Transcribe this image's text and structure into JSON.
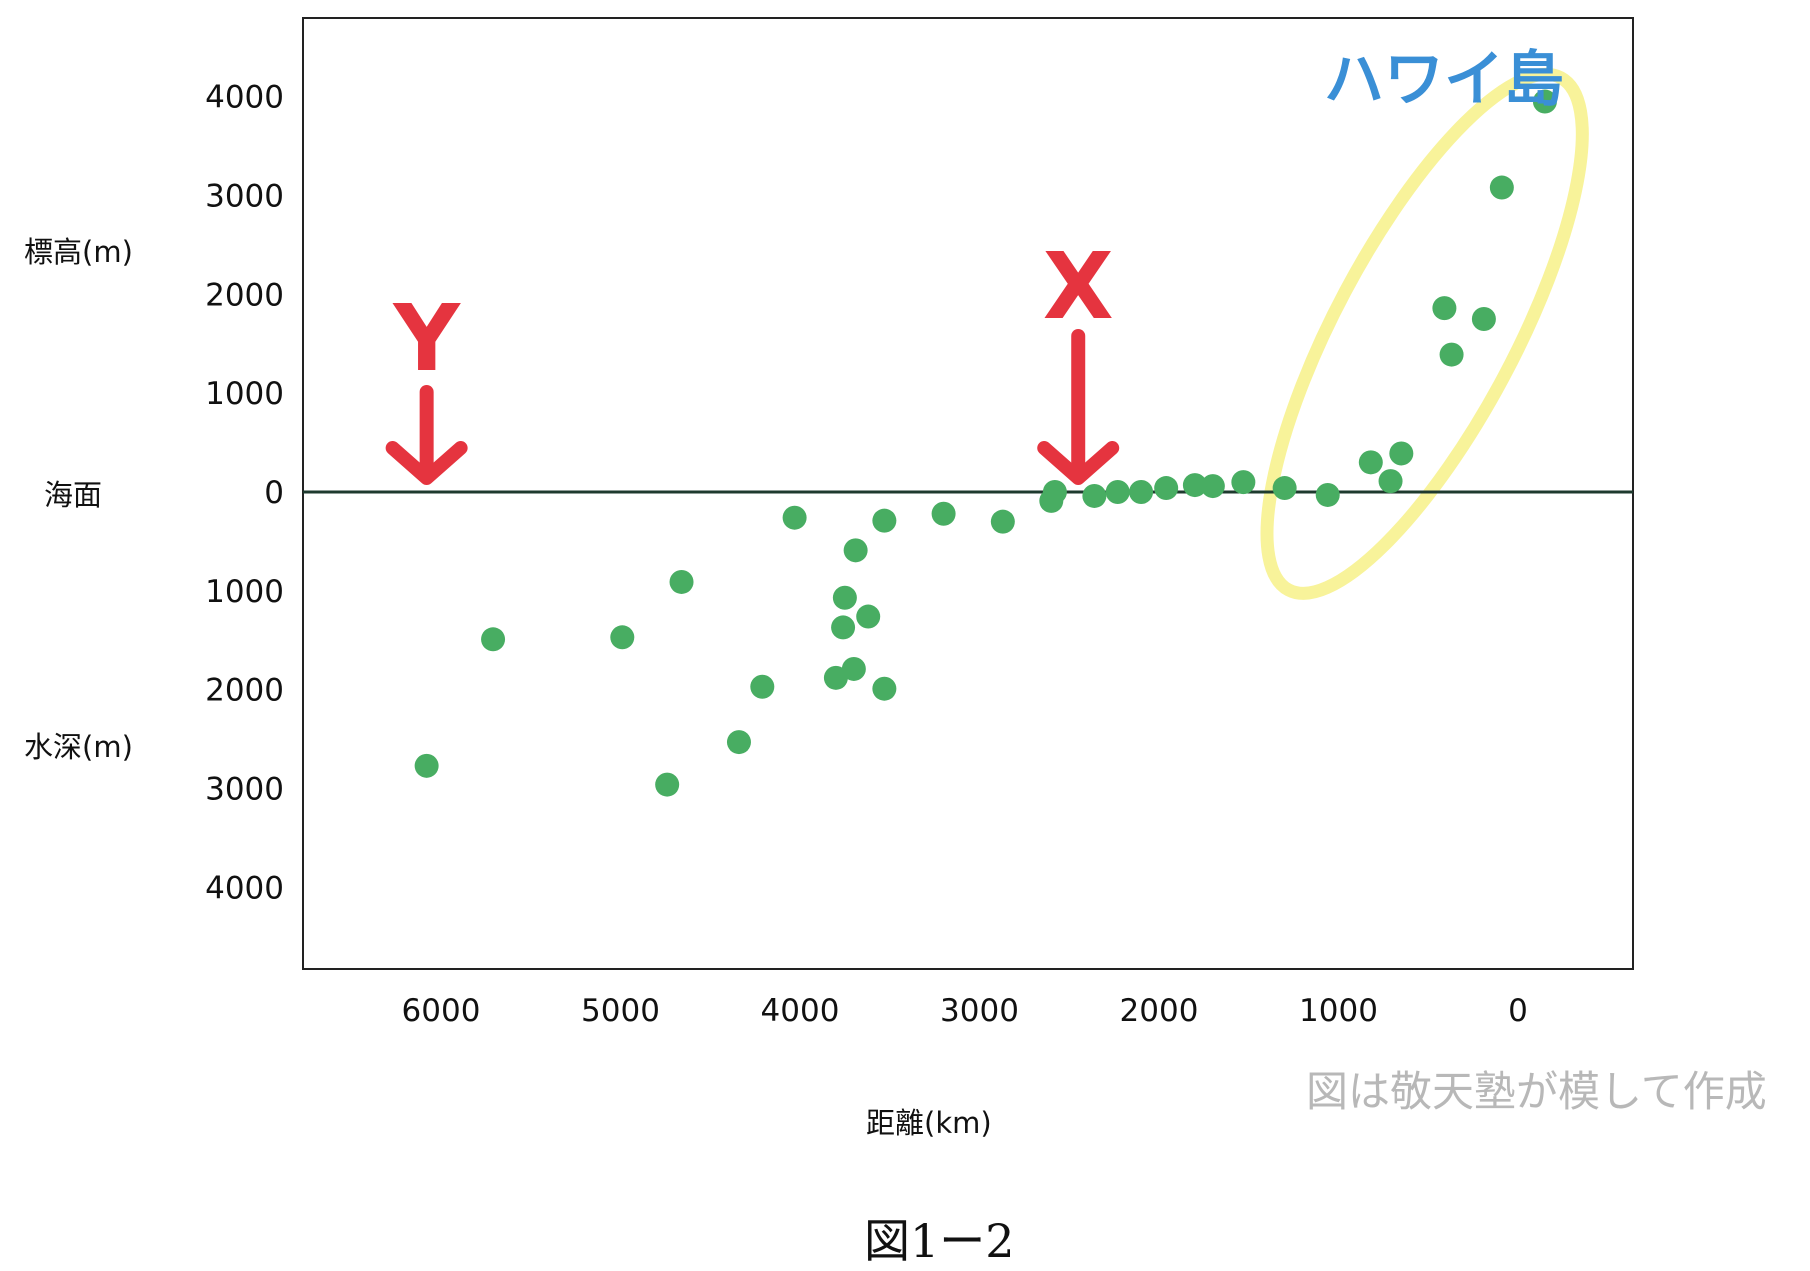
{
  "chart_data": {
    "type": "scatter",
    "xlabel": "距離(km)",
    "ylabel_top": "標高(m)",
    "ylabel_bottom": "水深(m)",
    "zero_label": "海面",
    "xlim": [
      6800,
      -700
    ],
    "ylim": [
      -4800,
      4800
    ],
    "x_ticks": [
      "6000",
      "5000",
      "4000",
      "3000",
      "2000",
      "1000",
      "0"
    ],
    "x_tick_values": [
      6000,
      5000,
      4000,
      3000,
      2000,
      1000,
      0
    ],
    "y_ticks": [
      "4000",
      "3000",
      "2000",
      "1000",
      "0",
      "1000",
      "2000",
      "3000",
      "4000"
    ],
    "y_tick_values": [
      4000,
      3000,
      2000,
      1000,
      0,
      -1000,
      -2000,
      -3000,
      -4000
    ],
    "grid": false,
    "points": [
      {
        "x": -150,
        "y": 3950
      },
      {
        "x": 90,
        "y": 3080
      },
      {
        "x": 410,
        "y": 1860
      },
      {
        "x": 190,
        "y": 1750
      },
      {
        "x": 370,
        "y": 1390
      },
      {
        "x": 650,
        "y": 390
      },
      {
        "x": 820,
        "y": 300
      },
      {
        "x": 710,
        "y": 110
      },
      {
        "x": 1060,
        "y": -30
      },
      {
        "x": 1300,
        "y": 40
      },
      {
        "x": 1530,
        "y": 100
      },
      {
        "x": 1700,
        "y": 60
      },
      {
        "x": 1800,
        "y": 70
      },
      {
        "x": 1960,
        "y": 40
      },
      {
        "x": 2100,
        "y": 0
      },
      {
        "x": 2230,
        "y": 0
      },
      {
        "x": 2360,
        "y": -40
      },
      {
        "x": 2580,
        "y": 0
      },
      {
        "x": 2600,
        "y": -90
      },
      {
        "x": 2870,
        "y": -300
      },
      {
        "x": 3200,
        "y": -220
      },
      {
        "x": 3530,
        "y": -290
      },
      {
        "x": 3690,
        "y": -590
      },
      {
        "x": 3750,
        "y": -1070
      },
      {
        "x": 3620,
        "y": -1260
      },
      {
        "x": 3760,
        "y": -1370
      },
      {
        "x": 3800,
        "y": -1880
      },
      {
        "x": 3700,
        "y": -1790
      },
      {
        "x": 3530,
        "y": -1990
      },
      {
        "x": 4030,
        "y": -260
      },
      {
        "x": 4660,
        "y": -910
      },
      {
        "x": 4210,
        "y": -1970
      },
      {
        "x": 4340,
        "y": -2530
      },
      {
        "x": 4740,
        "y": -2960
      },
      {
        "x": 4990,
        "y": -1470
      },
      {
        "x": 5710,
        "y": -1490
      },
      {
        "x": 6080,
        "y": -2770
      }
    ],
    "annotations": [
      {
        "text": "ハワイ島",
        "color": "#3a8fd6"
      },
      {
        "text": "X",
        "color": "#e5343f",
        "x": 2450
      },
      {
        "text": "Y",
        "color": "#e5343f",
        "x": 6080
      }
    ],
    "colors": {
      "points": "#48ad62",
      "ellipse": "#f8f39a",
      "arrow": "#e5343f",
      "island_label": "#3a8fd6",
      "sea_line": "#1e3a2e"
    }
  },
  "credit": "図は敬天塾が模して作成",
  "figure_caption": "図1ー2"
}
